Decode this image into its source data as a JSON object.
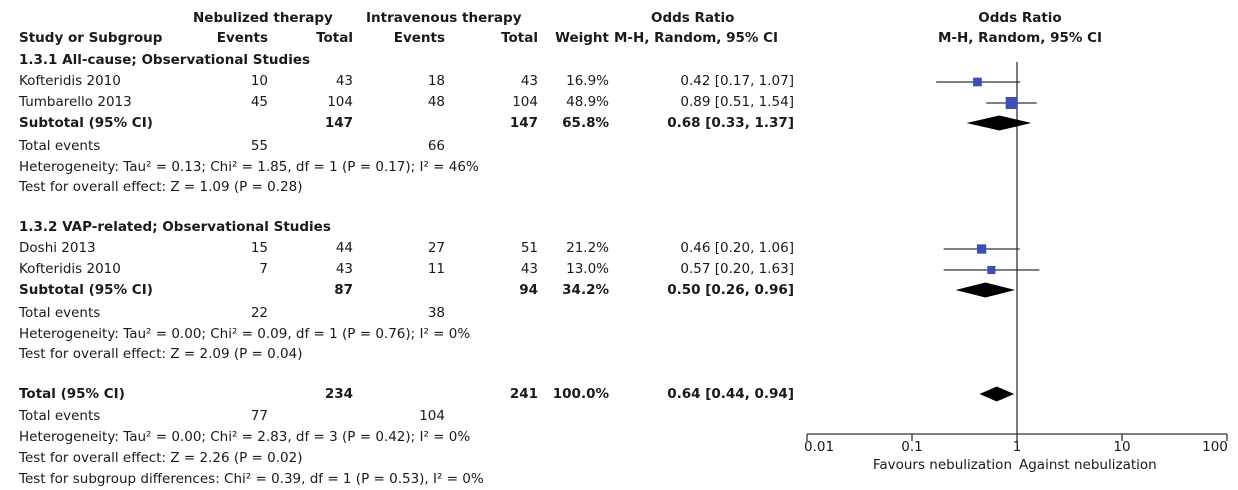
{
  "header": {
    "group1_label": "Nebulized therapy",
    "group2_label": "Intravenous therapy",
    "or_label_table": "Odds Ratio",
    "or_label_plot": "Odds Ratio",
    "study_col": "Study or Subgroup",
    "events1": "Events",
    "total1": "Total",
    "events2": "Events",
    "total2": "Total",
    "weight": "Weight",
    "method_table": "M-H, Random, 95% CI",
    "method_plot": "M-H, Random, 95% CI"
  },
  "subgroups": [
    {
      "title": "1.3.1 All-cause; Observational Studies",
      "studies": [
        {
          "name": "Kofteridis 2010",
          "e1": "10",
          "n1": "43",
          "e2": "18",
          "n2": "43",
          "weight": "16.9%",
          "ci": "0.42 [0.17, 1.07]"
        },
        {
          "name": "Tumbarello 2013",
          "e1": "45",
          "n1": "104",
          "e2": "48",
          "n2": "104",
          "weight": "48.9%",
          "ci": "0.89 [0.51, 1.54]"
        }
      ],
      "subtotal": {
        "label": "Subtotal (95% CI)",
        "n1": "147",
        "n2": "147",
        "weight": "65.8%",
        "ci": "0.68 [0.33, 1.37]"
      },
      "total_events": {
        "label": "Total events",
        "e1": "55",
        "e2": "66"
      },
      "heterogeneity": "Heterogeneity: Tau² = 0.13; Chi² = 1.85, df = 1 (P = 0.17); I² = 46%",
      "overall": "Test for overall effect: Z = 1.09 (P = 0.28)"
    },
    {
      "title": "1.3.2 VAP-related; Observational Studies",
      "studies": [
        {
          "name": "Doshi 2013",
          "e1": "15",
          "n1": "44",
          "e2": "27",
          "n2": "51",
          "weight": "21.2%",
          "ci": "0.46 [0.20, 1.06]"
        },
        {
          "name": "Kofteridis 2010",
          "e1": "7",
          "n1": "43",
          "e2": "11",
          "n2": "43",
          "weight": "13.0%",
          "ci": "0.57 [0.20, 1.63]"
        }
      ],
      "subtotal": {
        "label": "Subtotal (95% CI)",
        "n1": "87",
        "n2": "94",
        "weight": "34.2%",
        "ci": "0.50 [0.26, 0.96]"
      },
      "total_events": {
        "label": "Total events",
        "e1": "22",
        "e2": "38"
      },
      "heterogeneity": "Heterogeneity: Tau² = 0.00; Chi² = 0.09, df = 1 (P = 0.76); I² = 0%",
      "overall": "Test for overall effect: Z = 2.09 (P = 0.04)"
    }
  ],
  "total": {
    "label": "Total (95% CI)",
    "n1": "234",
    "n2": "241",
    "weight": "100.0%",
    "ci": "0.64 [0.44, 0.94]"
  },
  "total_events": {
    "label": "Total events",
    "e1": "77",
    "e2": "104"
  },
  "total_heterogeneity": "Heterogeneity: Tau² = 0.00; Chi² = 2.83, df = 3 (P = 0.42); I² = 0%",
  "total_overall": "Test for overall effect: Z = 2.26 (P = 0.02)",
  "subgroup_diff": "Test for subgroup differences: Chi² = 0.39, df = 1 (P = 0.53), I² = 0%",
  "axis": {
    "favours_left": "Favours nebulization",
    "favours_right": "Against nebulization"
  },
  "colors": {
    "marker": "#3d4fb5",
    "diamond": "#000000",
    "line": "#333333"
  },
  "chart_data": {
    "type": "scatter",
    "subtype": "forest_plot",
    "scale": "log",
    "xlim": [
      0.01,
      100
    ],
    "ticks": [
      0.01,
      0.1,
      1,
      10,
      100
    ],
    "tick_labels": [
      "0.01",
      "0.1",
      "1",
      "10",
      "100"
    ],
    "reference_line": 1,
    "studies": [
      {
        "name": "Kofteridis 2010",
        "or": 0.42,
        "lo": 0.17,
        "hi": 1.07,
        "weight": 16.9,
        "group": "1.3.1"
      },
      {
        "name": "Tumbarello 2013",
        "or": 0.89,
        "lo": 0.51,
        "hi": 1.54,
        "weight": 48.9,
        "group": "1.3.1"
      },
      {
        "name": "Doshi 2013",
        "or": 0.46,
        "lo": 0.2,
        "hi": 1.06,
        "weight": 21.2,
        "group": "1.3.2"
      },
      {
        "name": "Kofteridis 2010",
        "or": 0.57,
        "lo": 0.2,
        "hi": 1.63,
        "weight": 13.0,
        "group": "1.3.2"
      }
    ],
    "pooled": [
      {
        "name": "Subtotal 1.3.1",
        "or": 0.68,
        "lo": 0.33,
        "hi": 1.37
      },
      {
        "name": "Subtotal 1.3.2",
        "or": 0.5,
        "lo": 0.26,
        "hi": 0.96
      },
      {
        "name": "Total",
        "or": 0.64,
        "lo": 0.44,
        "hi": 0.94
      }
    ]
  }
}
